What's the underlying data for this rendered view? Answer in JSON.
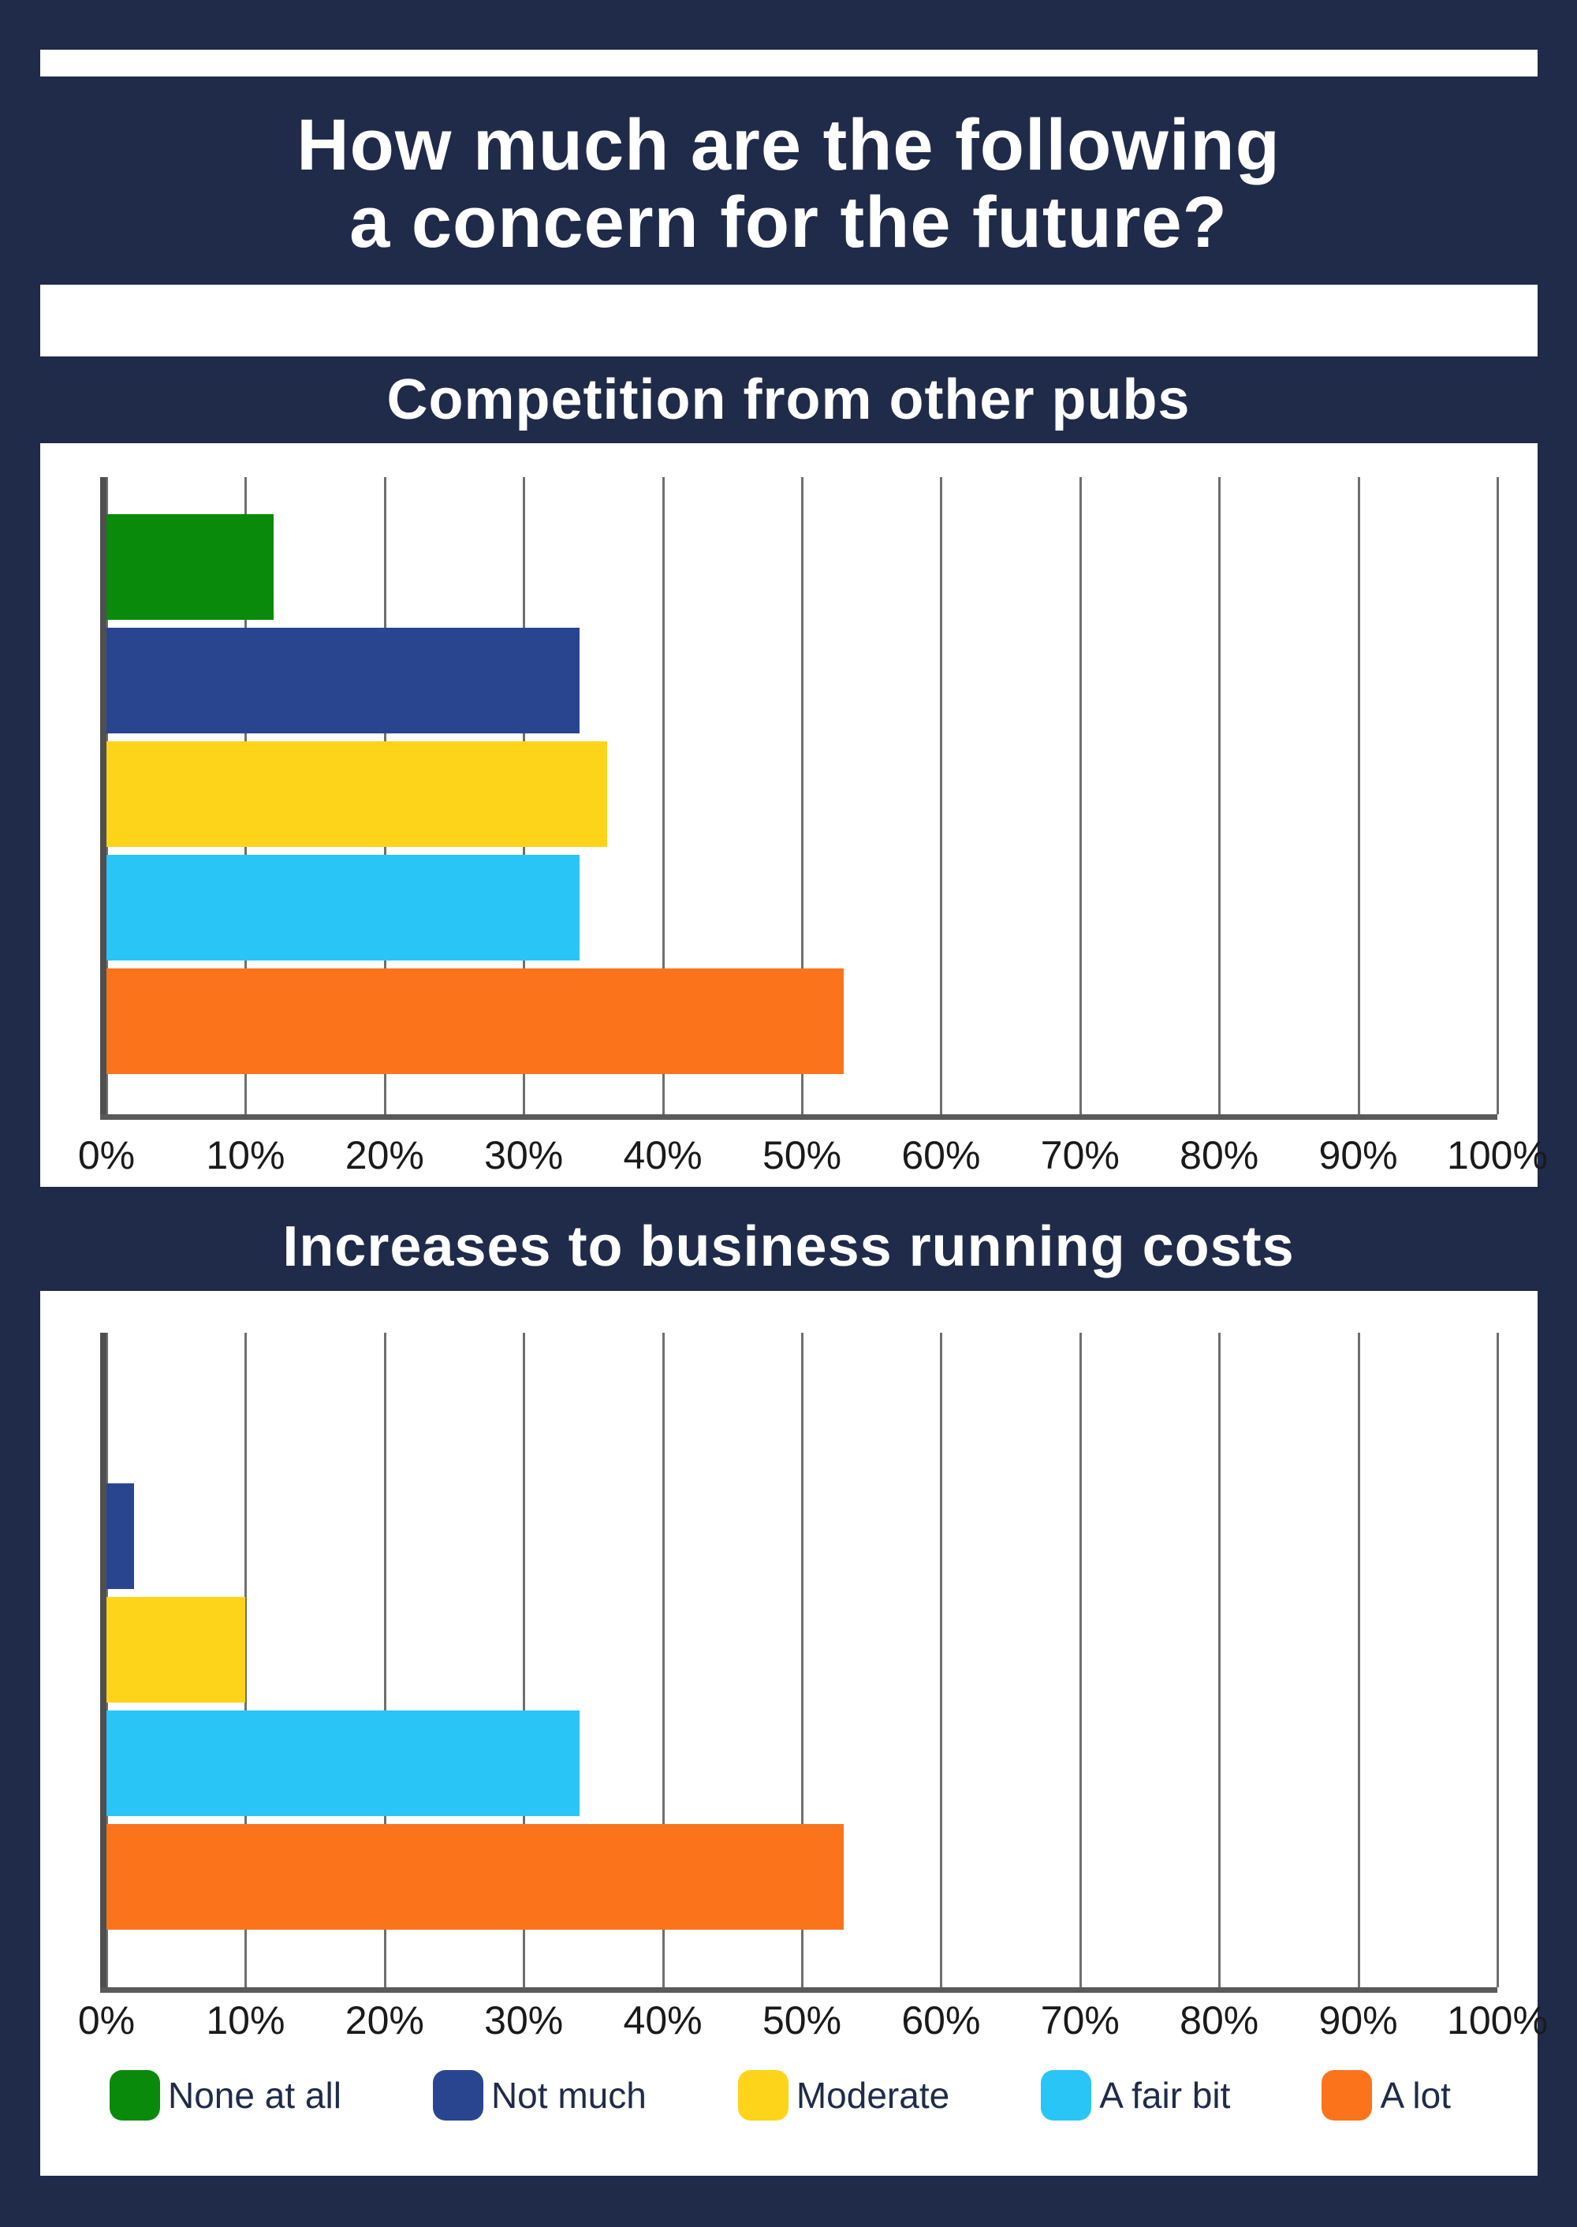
{
  "header": {
    "title_line1": "How much are the following",
    "title_line2": "a concern for the future?"
  },
  "colors": {
    "background_navy": "#1F2B49",
    "panel_white": "#FFFFFF",
    "gridline_gray": "#6F6F6F",
    "axis_gray": "#555555",
    "tick_text": "#1A1A1A",
    "title_text": "#FFFFFF"
  },
  "legend": {
    "items": [
      {
        "label": "None at all",
        "color": "#0A8A0A"
      },
      {
        "label": "Not much",
        "color": "#2A4590"
      },
      {
        "label": "Moderate",
        "color": "#FDD41A"
      },
      {
        "label": "A fair bit",
        "color": "#29C5F6"
      },
      {
        "label": "A lot",
        "color": "#FB741C"
      }
    ]
  },
  "chart_data": [
    {
      "type": "bar",
      "orientation": "horizontal",
      "title": "Competition from other pubs",
      "categories": [
        "None at all",
        "Not much",
        "Moderate",
        "A fair bit",
        "A lot"
      ],
      "values": [
        12,
        34,
        36,
        34,
        53
      ],
      "series_colors": [
        "#0A8A0A",
        "#2A4590",
        "#FDD41A",
        "#29C5F6",
        "#FB741C"
      ],
      "xlabel": "",
      "ylabel": "",
      "xlim": [
        0,
        100
      ],
      "xticks": [
        "0%",
        "10%",
        "20%",
        "30%",
        "40%",
        "50%",
        "60%",
        "70%",
        "80%",
        "90%",
        "100%"
      ],
      "grid": true,
      "legend_position": "bottom-shared"
    },
    {
      "type": "bar",
      "orientation": "horizontal",
      "title": "Increases to business running costs",
      "categories": [
        "None at all",
        "Not much",
        "Moderate",
        "A fair bit",
        "A lot"
      ],
      "values": [
        0,
        2,
        10,
        34,
        53
      ],
      "series_colors": [
        "#0A8A0A",
        "#2A4590",
        "#FDD41A",
        "#29C5F6",
        "#FB741C"
      ],
      "xlabel": "",
      "ylabel": "",
      "xlim": [
        0,
        100
      ],
      "xticks": [
        "0%",
        "10%",
        "20%",
        "30%",
        "40%",
        "50%",
        "60%",
        "70%",
        "80%",
        "90%",
        "100%"
      ],
      "grid": true,
      "legend_position": "bottom-shared"
    }
  ]
}
